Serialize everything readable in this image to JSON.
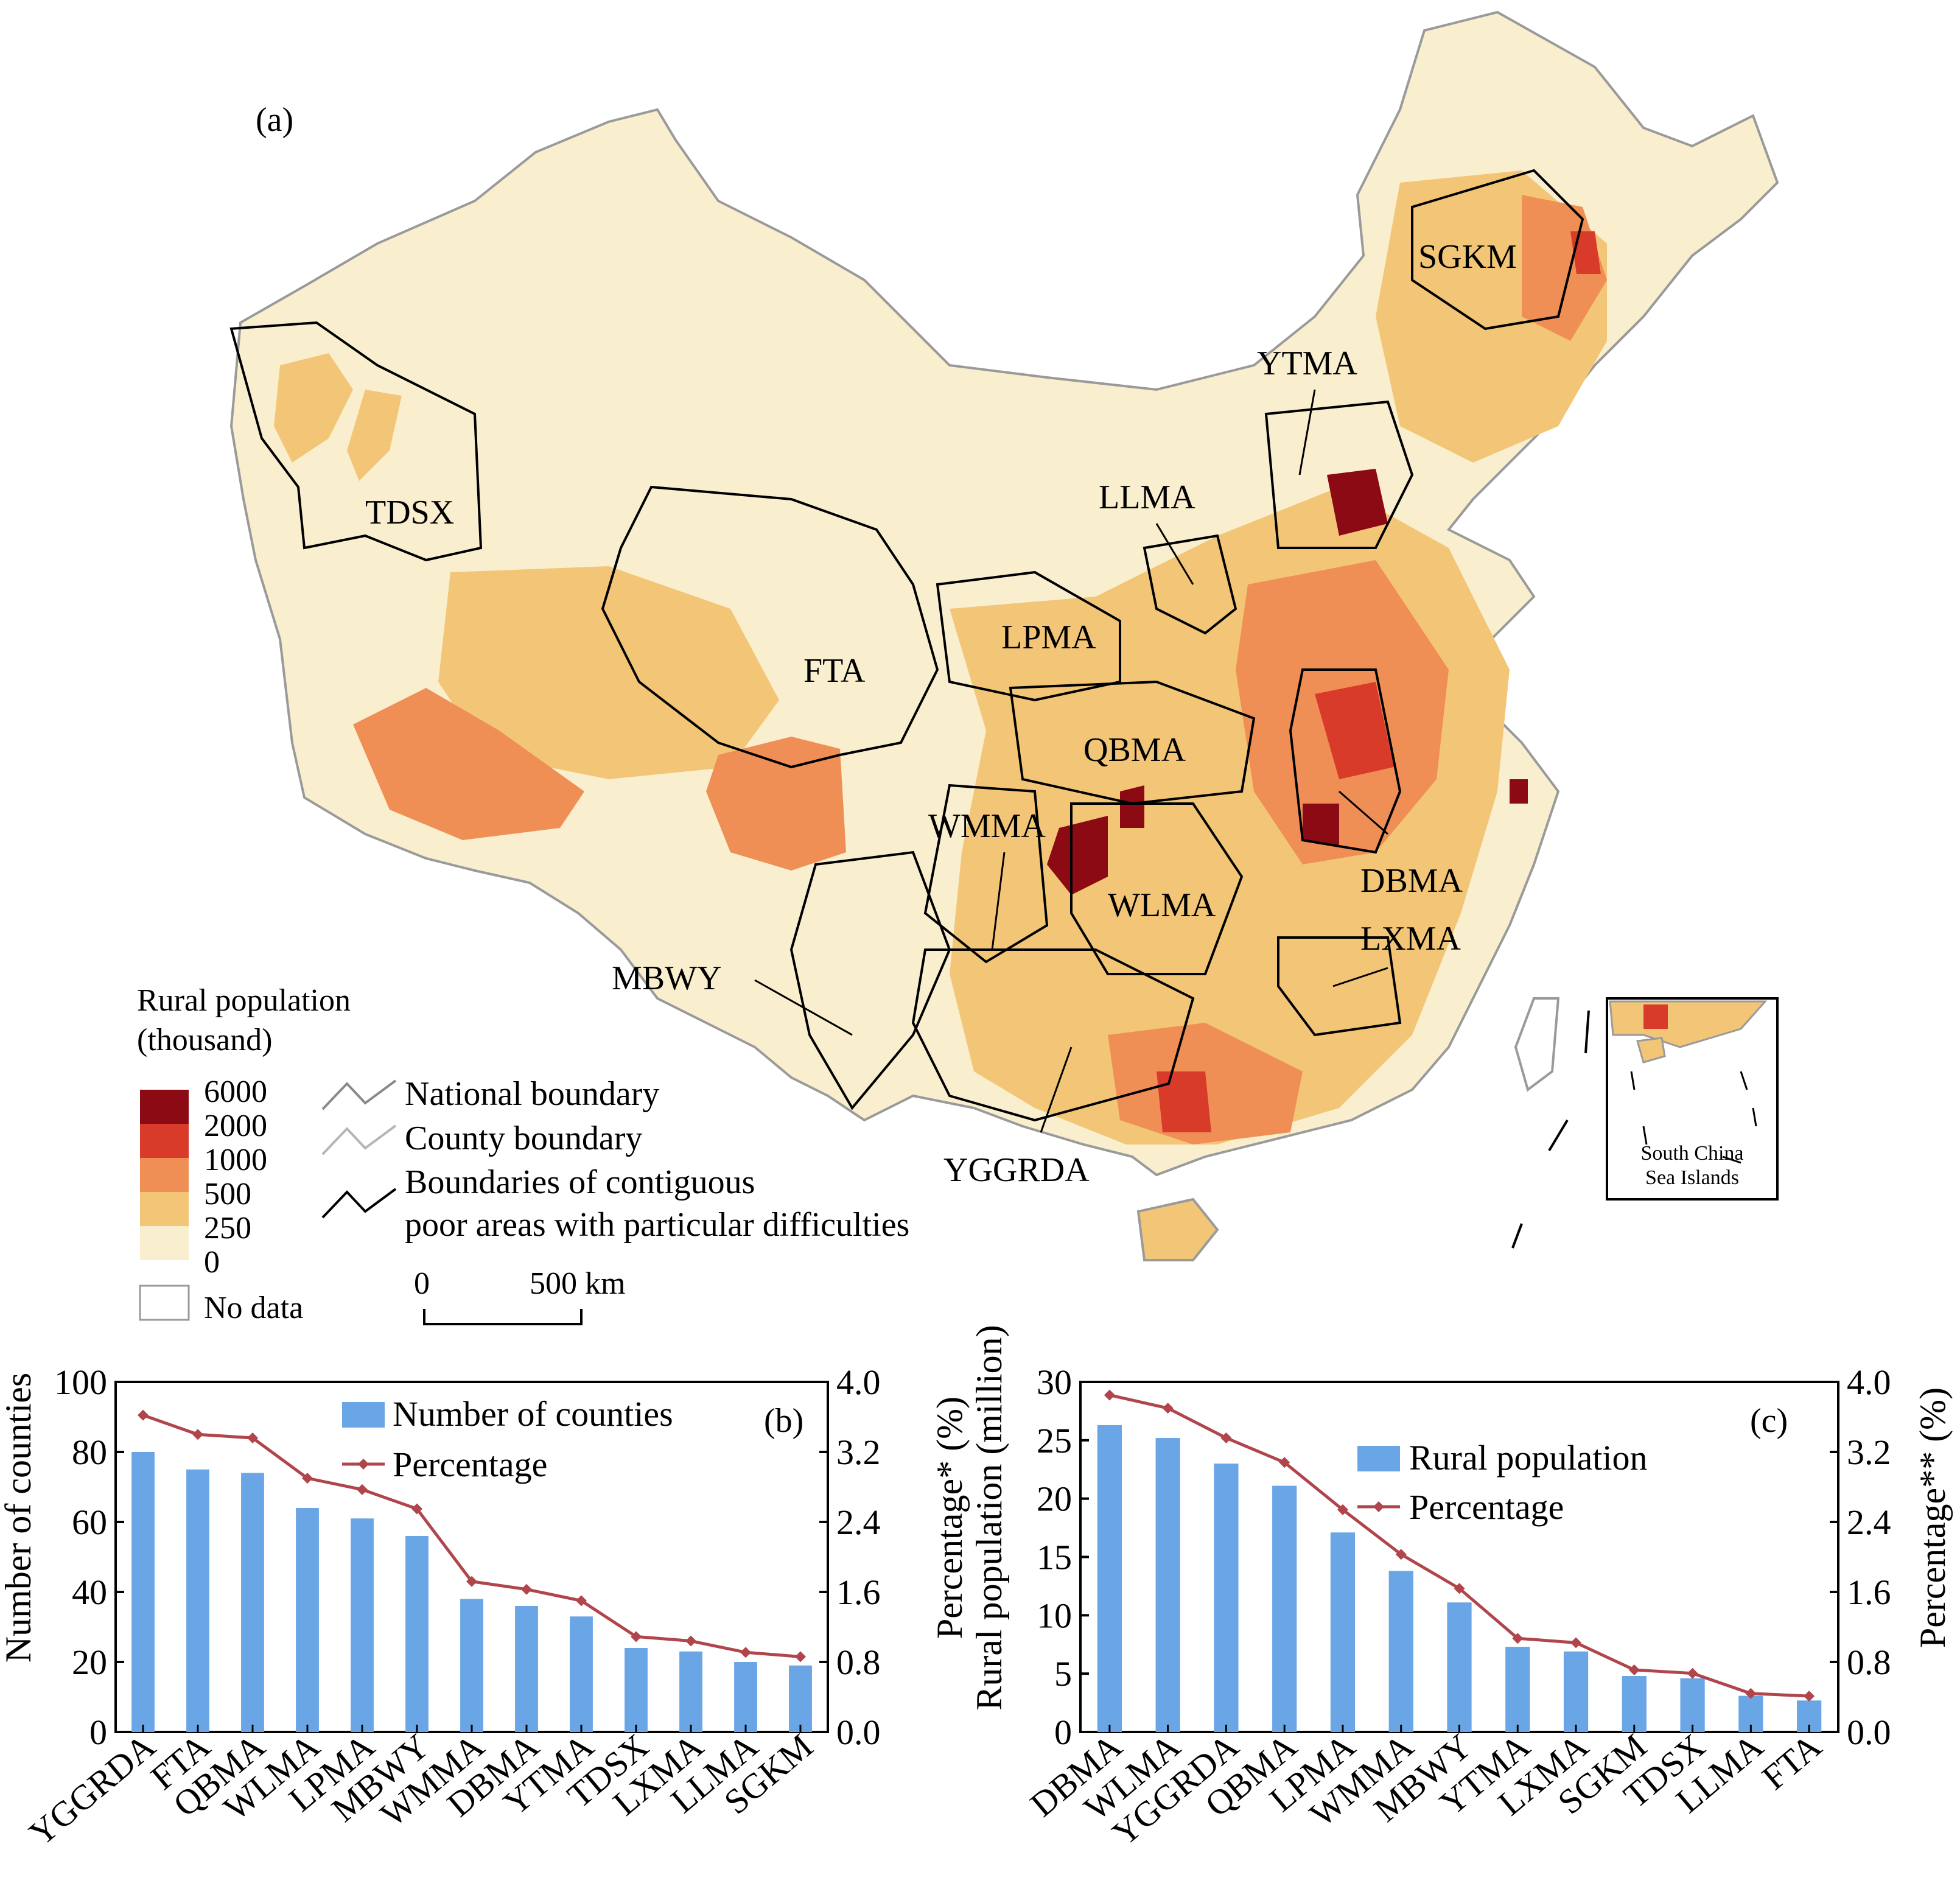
{
  "map": {
    "panel_label": "(a)",
    "region_labels": [
      "TDSX",
      "FTA",
      "LPMA",
      "LLMA",
      "YTMA",
      "SGKM",
      "QBMA",
      "WMMA",
      "WLMA",
      "DBMA",
      "LXMA",
      "MBWY",
      "YGGRDA"
    ],
    "legend": {
      "title_line1": "Rural population",
      "title_line2": "(thousand)",
      "breaks": [
        "6000",
        "2000",
        "1000",
        "500",
        "250",
        "0"
      ],
      "colors": [
        "#8b0a14",
        "#d93b2b",
        "#ef8f55",
        "#f3c677",
        "#f9efcf"
      ],
      "no_data_label": "No data",
      "no_data_color": "#ffffff",
      "boundary_national": "National boundary",
      "boundary_county": "County boundary",
      "boundary_poor_line1": "Boundaries of contiguous",
      "boundary_poor_line2": "poor areas with particular difficulties"
    },
    "scale_bar": {
      "start": "0",
      "end": "500 km"
    },
    "inset_label_line1": "South China",
    "inset_label_line2": "Sea Islands"
  },
  "chart_data": [
    {
      "type": "bar",
      "panel_label": "(b)",
      "categories": [
        "YGGRDA",
        "FTA",
        "QBMA",
        "WLMA",
        "LPMA",
        "MBWY",
        "WMMA",
        "DBMA",
        "YTMA",
        "TDSX",
        "LXMA",
        "LLMA",
        "SGKM"
      ],
      "series": [
        {
          "name": "Number of counties",
          "type": "bar",
          "axis": "left",
          "color": "#6aa6e6",
          "values": [
            80,
            75,
            74,
            64,
            61,
            56,
            38,
            36,
            33,
            24,
            23,
            20,
            19
          ]
        },
        {
          "name": "Percentage",
          "type": "line",
          "axis": "right",
          "color": "#b0454b",
          "values": [
            3.62,
            3.4,
            3.36,
            2.9,
            2.77,
            2.55,
            1.72,
            1.63,
            1.5,
            1.09,
            1.04,
            0.91,
            0.86
          ]
        }
      ],
      "ylabel": "Number of counties",
      "ylim": [
        0,
        100
      ],
      "yticks": [
        "0",
        "20",
        "40",
        "60",
        "80",
        "100"
      ],
      "y2label": "Percentage* (%)",
      "y2lim": [
        0,
        4.0
      ],
      "y2ticks": [
        "0.0",
        "0.8",
        "1.6",
        "2.4",
        "3.2",
        "4.0"
      ],
      "legend_position": "top-center"
    },
    {
      "type": "bar",
      "panel_label": "(c)",
      "categories": [
        "DBMA",
        "WLMA",
        "YGGRDA",
        "QBMA",
        "LPMA",
        "WMMA",
        "MBWY",
        "YTMA",
        "LXMA",
        "SGKM",
        "TDSX",
        "LLMA",
        "FTA"
      ],
      "series": [
        {
          "name": "Rural population",
          "type": "bar",
          "axis": "left",
          "color": "#6aa6e6",
          "values": [
            26.3,
            25.2,
            23.0,
            21.1,
            17.1,
            13.8,
            11.1,
            7.3,
            6.9,
            4.8,
            4.6,
            3.1,
            2.7
          ]
        },
        {
          "name": "Percentage",
          "type": "line",
          "axis": "right",
          "color": "#b0454b",
          "values": [
            3.85,
            3.7,
            3.36,
            3.08,
            2.54,
            2.03,
            1.64,
            1.07,
            1.02,
            0.71,
            0.67,
            0.44,
            0.41
          ]
        }
      ],
      "ylabel": "Rural population (million)",
      "ylim": [
        0,
        30
      ],
      "yticks": [
        "0",
        "5",
        "10",
        "15",
        "20",
        "25",
        "30"
      ],
      "y2label": "Percentage** (%)",
      "y2lim": [
        0,
        4.0
      ],
      "y2ticks": [
        "0.0",
        "0.8",
        "1.6",
        "2.4",
        "3.2",
        "4.0"
      ],
      "legend_position": "top-center"
    }
  ]
}
